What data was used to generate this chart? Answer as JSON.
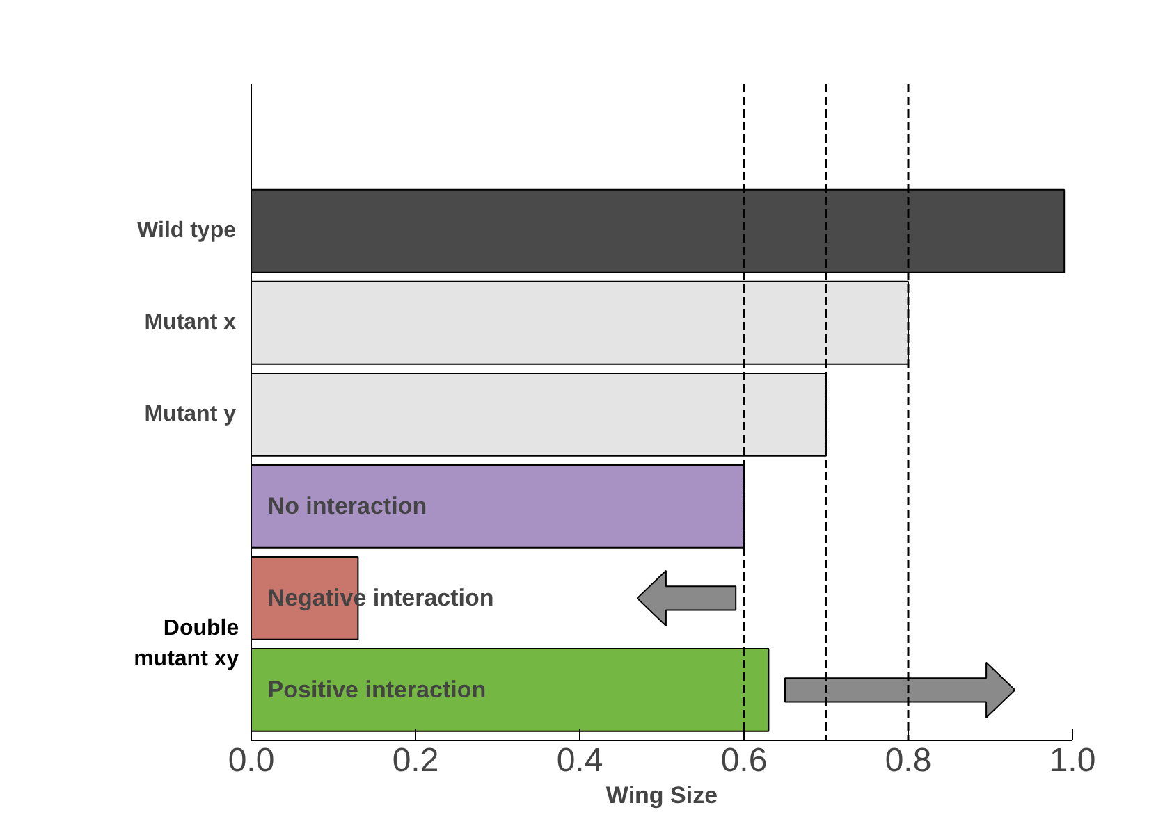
{
  "chart_data": {
    "type": "bar",
    "orientation": "horizontal",
    "xlabel": "Wing Size",
    "categories": [
      "Wild type",
      "Mutant x",
      "Mutant y",
      "No interaction",
      "Negative  interaction",
      "Positive  interaction"
    ],
    "values": [
      0.99,
      0.8,
      0.7,
      0.6,
      0.13,
      0.63
    ],
    "colors": [
      "#4a4a4a",
      "#e4e4e4",
      "#e4e4e4",
      "#a892c4",
      "#c9766c",
      "#74b843"
    ],
    "xlim": [
      0,
      1.0
    ],
    "xticks": [
      {
        "value": 0,
        "label": "0.0"
      },
      {
        "value": 0.2,
        "label": "0.2"
      },
      {
        "value": 0.4,
        "label": "0.4"
      },
      {
        "value": 0.6,
        "label": "0.6"
      },
      {
        "value": 0.8,
        "label": "0.8"
      },
      {
        "value": 1.0,
        "label": "1.0"
      }
    ],
    "ref_lines": [
      {
        "axis": "x",
        "value": 0.6,
        "line_style": "dashed"
      },
      {
        "axis": "x",
        "value": 0.7,
        "line_style": "dashed"
      },
      {
        "axis": "x",
        "value": 0.8,
        "line_style": "dashed"
      }
    ],
    "annotations": [
      "Double mutant xy"
    ],
    "grid": false
  }
}
